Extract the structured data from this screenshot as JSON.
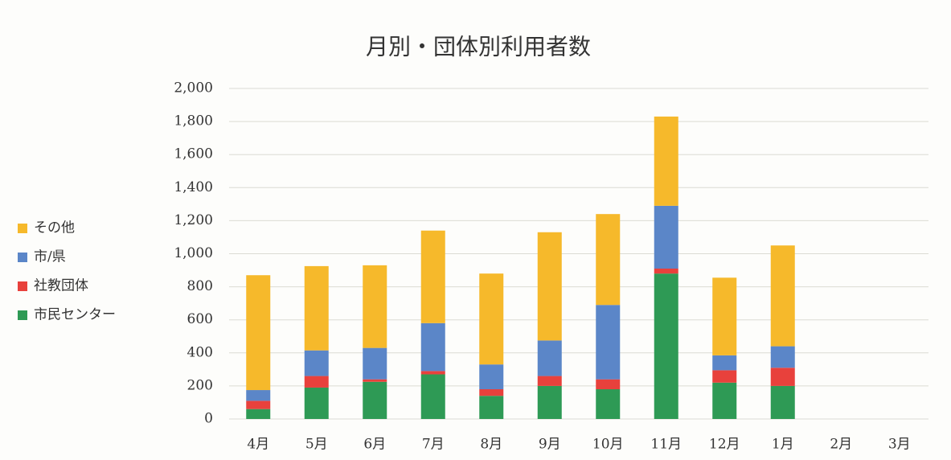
{
  "chart_data": {
    "type": "stacked_bar",
    "title": "月別・団体別利用者数",
    "categories": [
      "4月",
      "5月",
      "6月",
      "7月",
      "8月",
      "9月",
      "10月",
      "11月",
      "12月",
      "1月",
      "2月",
      "3月"
    ],
    "series": [
      {
        "name": "市民センター",
        "color": "#2e9a55",
        "values": [
          60,
          190,
          225,
          270,
          140,
          200,
          180,
          880,
          220,
          200,
          null,
          null
        ]
      },
      {
        "name": "社教団体",
        "color": "#e8413c",
        "values": [
          50,
          70,
          15,
          20,
          40,
          60,
          60,
          30,
          75,
          110,
          null,
          null
        ]
      },
      {
        "name": "市/県",
        "color": "#5b86c8",
        "values": [
          65,
          155,
          190,
          290,
          150,
          215,
          450,
          380,
          90,
          130,
          null,
          null
        ]
      },
      {
        "name": "その他",
        "color": "#f6b92b",
        "values": [
          695,
          510,
          500,
          560,
          550,
          655,
          550,
          540,
          470,
          610,
          null,
          null
        ]
      }
    ],
    "ylim": [
      0,
      2000
    ],
    "yticks": [
      0,
      200,
      400,
      600,
      800,
      {
        "value": 1000,
        "label": "1,000"
      },
      {
        "value": 1200,
        "label": "1,200"
      },
      {
        "value": 1400,
        "label": "1,400"
      },
      {
        "value": 1600,
        "label": "1,600"
      },
      {
        "value": 1800,
        "label": "1,800"
      },
      {
        "value": 2000,
        "label": "2,000"
      }
    ],
    "grid": true,
    "legend": "left"
  }
}
